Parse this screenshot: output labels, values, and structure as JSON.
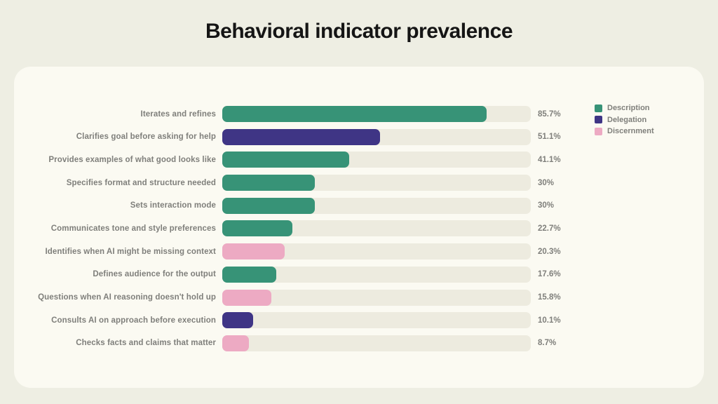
{
  "page": {
    "title": "Behavioral indicator prevalence"
  },
  "colors": {
    "description": "#379377",
    "delegation": "#3f3585",
    "discernment": "#edaac3",
    "track": "#edebdf",
    "panel": "#fbfaf2",
    "page_bg": "#eeeee3",
    "title_text": "#151515",
    "label_text": "#7f7f7b"
  },
  "chart_data": {
    "type": "bar",
    "orientation": "horizontal",
    "title": "Behavioral indicator prevalence",
    "xlabel": "",
    "ylabel": "",
    "xlim": [
      0,
      100
    ],
    "unit": "%",
    "grid": false,
    "legend_position": "top-right",
    "legend": [
      {
        "label": "Description",
        "series": "description"
      },
      {
        "label": "Delegation",
        "series": "delegation"
      },
      {
        "label": "Discernment",
        "series": "discernment"
      }
    ],
    "bars": [
      {
        "label": "Iterates and refines",
        "value": 85.7,
        "value_label": "85.7%",
        "series": "description"
      },
      {
        "label": "Clarifies goal before asking for help",
        "value": 51.1,
        "value_label": "51.1%",
        "series": "delegation"
      },
      {
        "label": "Provides examples of what good looks like",
        "value": 41.1,
        "value_label": "41.1%",
        "series": "description"
      },
      {
        "label": "Specifies format and structure needed",
        "value": 30,
        "value_label": "30%",
        "series": "description"
      },
      {
        "label": "Sets interaction mode",
        "value": 30,
        "value_label": "30%",
        "series": "description"
      },
      {
        "label": "Communicates tone and style preferences",
        "value": 22.7,
        "value_label": "22.7%",
        "series": "description"
      },
      {
        "label": "Identifies when AI might be missing context",
        "value": 20.3,
        "value_label": "20.3%",
        "series": "discernment"
      },
      {
        "label": "Defines audience for the output",
        "value": 17.6,
        "value_label": "17.6%",
        "series": "description"
      },
      {
        "label": "Questions when AI reasoning doesn't hold up",
        "value": 15.8,
        "value_label": "15.8%",
        "series": "discernment"
      },
      {
        "label": "Consults AI on approach before execution",
        "value": 10.1,
        "value_label": "10.1%",
        "series": "delegation"
      },
      {
        "label": "Checks facts and claims that matter",
        "value": 8.7,
        "value_label": "8.7%",
        "series": "discernment"
      }
    ]
  }
}
